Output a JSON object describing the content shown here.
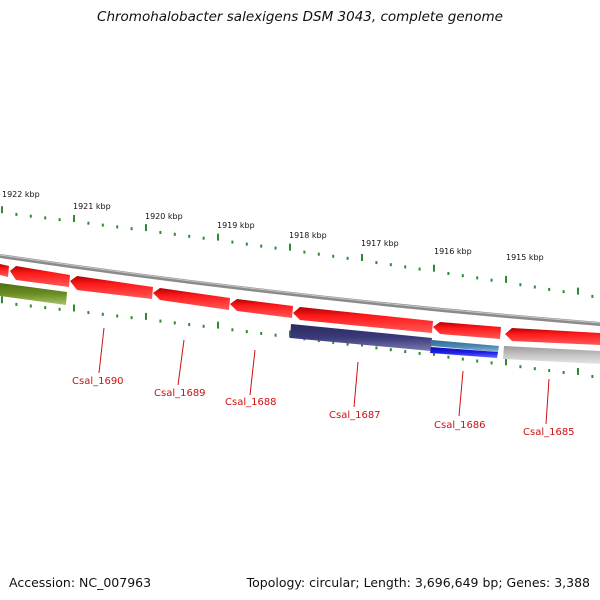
{
  "title": "Chromohalobacter salexigens DSM 3043, complete genome",
  "footer": {
    "accession": "Accession: NC_007963",
    "summary": "Topology: circular; Length: 3,696,649 bp; Genes: 3,388"
  },
  "scale_labels": [
    "1922 kbp",
    "1921 kbp",
    "1920 kbp",
    "1919 kbp",
    "1918 kbp",
    "1917 kbp",
    "1916 kbp",
    "1915 kbp"
  ],
  "gene_labels": [
    "Csal_1690",
    "Csal_1689",
    "Csal_1688",
    "Csal_1687",
    "Csal_1686",
    "Csal_1685"
  ],
  "colors": {
    "title_text": "#111111",
    "tick": "#2e8b2e",
    "backbone": "#888888",
    "gene_red": "#ee1111",
    "gene_navy": "#3b3a7a",
    "gene_blue": "#1f1fe6",
    "gene_steel": "#4a86b0",
    "gene_olive": "#6b8e23",
    "gene_grey": "#bdbdbd",
    "label_red": "#cc1111"
  }
}
